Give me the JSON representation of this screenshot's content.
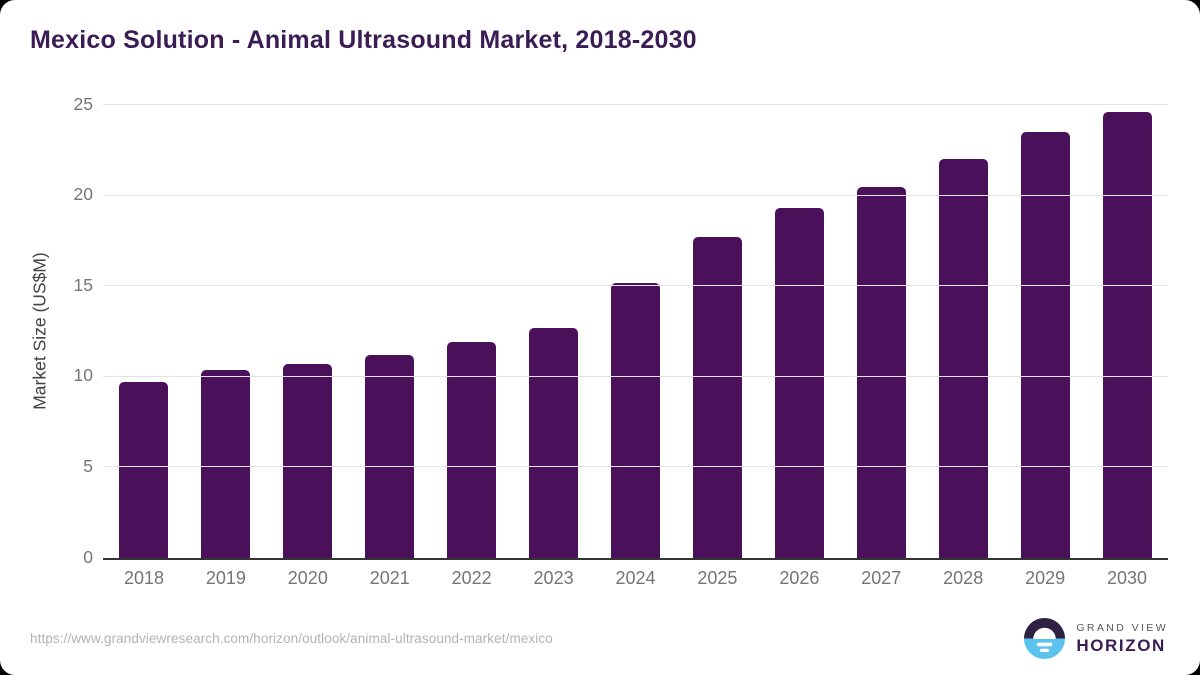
{
  "title": "Mexico Solution - Animal Ultrasound Market, 2018-2030",
  "chart_data": {
    "type": "bar",
    "categories": [
      "2018",
      "2019",
      "2020",
      "2021",
      "2022",
      "2023",
      "2024",
      "2025",
      "2026",
      "2027",
      "2028",
      "2029",
      "2030"
    ],
    "values": [
      9.7,
      10.4,
      10.7,
      11.2,
      11.9,
      12.7,
      15.2,
      17.7,
      19.3,
      20.5,
      22.0,
      23.5,
      24.6
    ],
    "title": "Mexico Solution - Animal Ultrasound Market, 2018-2030",
    "xlabel": "",
    "ylabel": "Market Size (US$M)",
    "ylim": [
      0,
      25
    ],
    "yticks": [
      0,
      5,
      10,
      15,
      20,
      25
    ],
    "grid": true,
    "legend_position": "none",
    "bar_color": "#4a1059"
  },
  "footer": {
    "source_url": "https://www.grandviewresearch.com/horizon/outlook/animal-ultrasound-market/mexico",
    "logo": {
      "line1": "GRAND VIEW",
      "line2": "HORIZON"
    }
  },
  "colors": {
    "title_text": "#3a1d55",
    "bar": "#4a1059",
    "axis_line": "#333333",
    "gridline": "#e4e4e4",
    "tick_label": "#757575",
    "axis_title": "#424242",
    "url_text": "#b3b3b3",
    "logo_dark": "#2e2144",
    "logo_blue": "#5cc3ef"
  }
}
